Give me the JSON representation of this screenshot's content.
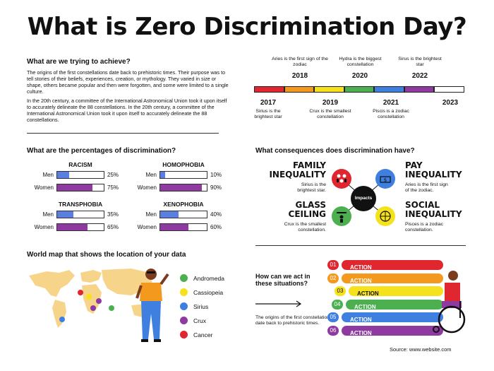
{
  "title": "What is Zero Discrimination Day?",
  "achieve": {
    "heading": "What are we trying to achieve?",
    "para1": "The origins of the first constellations date back to prehistoric times. Their purpose was to tell stories of their beliefs, experiences, creation, or mythology. They varied in size or shape, others became popular and then were forgotten, and some were limited to a single culture.",
    "para2": "In the 20th century, a committee of the International Astronomical Union took it upon itself to accurately delineate the 88 constellations. In the 20th century, a committee of the International Astronomical Union took it upon itself to accurately delineate the 88 constellations."
  },
  "timeline": {
    "top": [
      {
        "note": "Aries is the first sign of the zodiac",
        "year": "2018"
      },
      {
        "note": "Hydra is the biggest constellation",
        "year": "2020"
      },
      {
        "note": "Sirus is the brightest star",
        "year": "2022"
      }
    ],
    "bottom": [
      {
        "year": "2017",
        "note": "Sirius is the brightest star"
      },
      {
        "year": "2019",
        "note": "Crux is the smallest constellation"
      },
      {
        "year": "2021",
        "note": "Piscis is a zodiac constellation"
      },
      {
        "year": "2023",
        "note": ""
      }
    ],
    "colors": [
      "#e0262e",
      "#f39a1e",
      "#f6e21c",
      "#4caf50",
      "#3f7fe0",
      "#8e3aa0",
      "#ffffff"
    ]
  },
  "percentages": {
    "heading": "What are the percentages of discrimination?",
    "men_label": "Men",
    "women_label": "Women",
    "men_color": "#5b7fe0",
    "women_color": "#8e3aa0",
    "categories": [
      {
        "name": "RACISM",
        "men": 25,
        "women": 75,
        "men_text": "25%",
        "women_text": "75%"
      },
      {
        "name": "HOMOPHOBIA",
        "men": 10,
        "women": 90,
        "men_text": "10%",
        "women_text": "90%"
      },
      {
        "name": "TRANSPHOBIA",
        "men": 35,
        "women": 65,
        "men_text": "35%",
        "women_text": "65%"
      },
      {
        "name": "XENOPHOBIA",
        "men": 40,
        "women": 60,
        "men_text": "40%",
        "women_text": "60%"
      }
    ]
  },
  "consequences": {
    "heading": "What consequences does discrimination have?",
    "center": "Impacts",
    "items": [
      {
        "title1": "FAMILY",
        "title2": "INEQUALITY",
        "note1": "Sirius is the",
        "note2": "brightest star.",
        "color": "#e0262e"
      },
      {
        "title1": "PAY",
        "title2": "INEQUALITY",
        "note1": "Aries is the first sign",
        "note2": "of the zodiac.",
        "color": "#3f7fe0"
      },
      {
        "title1": "GLASS",
        "title2": "CEILING",
        "note1": "Crux is the smallest",
        "note2": "constellation.",
        "color": "#4caf50"
      },
      {
        "title1": "SOCIAL",
        "title2": "INEQUALITY",
        "note1": "Pisces is a zodiac",
        "note2": "constellation.",
        "color": "#f6e21c"
      }
    ]
  },
  "map": {
    "heading": "World map that shows the location of your data",
    "legend": [
      {
        "name": "Andromeda",
        "color": "#4caf50"
      },
      {
        "name": "Cassiopeia",
        "color": "#f6e21c"
      },
      {
        "name": "Sirius",
        "color": "#3f7fe0"
      },
      {
        "name": "Crux",
        "color": "#8e3aa0"
      },
      {
        "name": "Cancer",
        "color": "#e0262e"
      }
    ]
  },
  "act": {
    "question": "How can we act in these situations?",
    "note": "The origins of the first constellations date back to prehistoric times.",
    "actions": [
      {
        "num": "01",
        "label": "ACTION",
        "color": "#e0262e"
      },
      {
        "num": "02",
        "label": "ACTION",
        "color": "#f39a1e"
      },
      {
        "num": "03",
        "label": "ACTION",
        "color": "#f6e21c"
      },
      {
        "num": "04",
        "label": "ACTION",
        "color": "#4caf50"
      },
      {
        "num": "05",
        "label": "ACTION",
        "color": "#3f7fe0"
      },
      {
        "num": "06",
        "label": "ACTION",
        "color": "#8e3aa0"
      }
    ]
  },
  "source": "Source: www.website.com"
}
